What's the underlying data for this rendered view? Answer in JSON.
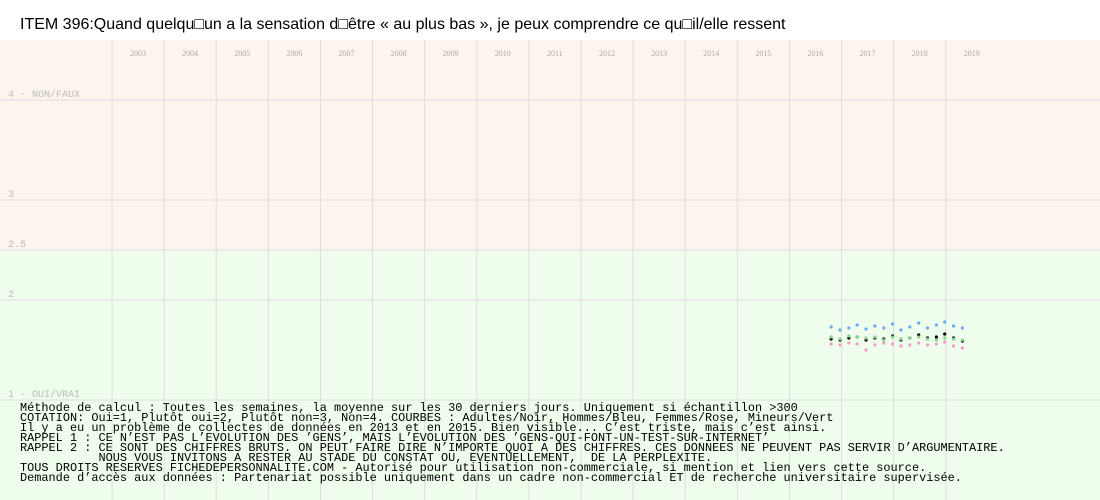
{
  "chart_data": {
    "type": "scatter",
    "title": "ITEM 396:Quand quelqu□un a la sensation d□être « au plus bas », je peux comprendre ce qu□il/elle ressent",
    "x": [
      2016.8,
      2016.97,
      2017.14,
      2017.3,
      2017.47,
      2017.64,
      2017.81,
      2017.98,
      2018.14,
      2018.31,
      2018.48,
      2018.65,
      2018.82,
      2018.98,
      2019.15,
      2019.32
    ],
    "series": [
      {
        "color": "#6aa8f0",
        "values": [
          1.73,
          1.7,
          1.72,
          1.75,
          1.71,
          1.74,
          1.72,
          1.76,
          1.7,
          1.73,
          1.77,
          1.72,
          1.75,
          1.78,
          1.74,
          1.72
        ]
      },
      {
        "color": "#000000",
        "values": [
          1.61,
          1.6,
          1.62,
          1.63,
          1.6,
          1.62,
          1.61,
          1.64,
          1.6,
          1.62,
          1.65,
          1.62,
          1.63,
          1.66,
          1.62,
          1.59
        ]
      },
      {
        "color": "#8cd48c",
        "values": [
          1.63,
          1.61,
          1.64,
          1.63,
          1.62,
          1.63,
          1.6,
          1.63,
          1.61,
          1.62,
          1.63,
          1.61,
          1.6,
          1.62,
          1.61,
          1.6
        ]
      },
      {
        "color": "#f0a0c8",
        "values": [
          1.56,
          1.55,
          1.57,
          1.56,
          1.5,
          1.55,
          1.57,
          1.56,
          1.54,
          1.55,
          1.57,
          1.55,
          1.56,
          1.58,
          1.54,
          1.52
        ]
      }
    ],
    "xlim": [
      2000.85,
      2021.96
    ],
    "xticks": [
      {
        "value": 2003,
        "label": "2003"
      },
      {
        "value": 2004,
        "label": "2004"
      },
      {
        "value": 2005,
        "label": "2005"
      },
      {
        "value": 2006,
        "label": "2006"
      },
      {
        "value": 2007,
        "label": "2007"
      },
      {
        "value": 2008,
        "label": "2008"
      },
      {
        "value": 2009,
        "label": "2009"
      },
      {
        "value": 2010,
        "label": "2010"
      },
      {
        "value": 2011,
        "label": "2011"
      },
      {
        "value": 2012,
        "label": "2012"
      },
      {
        "value": 2013,
        "label": "2013"
      },
      {
        "value": 2014,
        "label": "2014"
      },
      {
        "value": 2015,
        "label": "2015"
      },
      {
        "value": 2016,
        "label": "2016"
      },
      {
        "value": 2017,
        "label": "2017"
      },
      {
        "value": 2018,
        "label": "2018"
      },
      {
        "value": 2019,
        "label": "2019"
      }
    ],
    "ylim": [
      0,
      4.6
    ],
    "yticks": [
      {
        "value": 4,
        "label": "4 - NON/FAUX"
      },
      3,
      2.5,
      2,
      {
        "value": 1,
        "label": "1 - OUI/VRAI"
      }
    ],
    "zones": [
      {
        "from": 2.5,
        "to": 4.6,
        "color": "#fdf4ee"
      },
      {
        "from": 0,
        "to": 2.5,
        "color": "#effdec"
      }
    ],
    "grid": true,
    "notes": [
      "Méthode de calcul : Toutes les semaines, la moyenne sur les 30 derniers jours. Uniquement si échantillon >300",
      "COTATION: Oui=1, Plutôt oui=2, Plutôt non=3, Non=4. COURBES : Adultes/Noir, Hommes/Bleu, Femmes/Rose, Mineurs/Vert",
      "Il y a eu un problème de collectes de données en 2013 et en 2015. Bien visible... C’est triste, mais c’est ainsi.",
      "RAPPEL 1 : CE N’EST PAS L’EVOLUTION DES ’GENS’, MAIS L’EVOLUTION DES ’GENS-QUI-FONT-UN-TEST-SUR-INTERNET’",
      "RAPPEL 2 : CE SONT DES CHIFFRES BRUTS. ON PEUT FAIRE DIRE N’IMPORTE QUOI A DES CHIFFRES. CES DONNEES NE PEUVENT PAS SERVIR D’ARGUMENTAIRE.",
      "           NOUS VOUS INVITONS A RESTER AU STADE DU CONSTAT OU, EVENTUELLEMENT,  DE LA PERPLEXITE.",
      "TOUS DROITS RESERVES FICHEDEPERSONNALITE.COM - Autorisé pour utilisation non-commerciale, si mention et lien vers cette source.",
      "Demande d’accès aux données : Partenariat possible uniquement dans un cadre non-commercial ET de recherche universitaire supervisée."
    ]
  }
}
